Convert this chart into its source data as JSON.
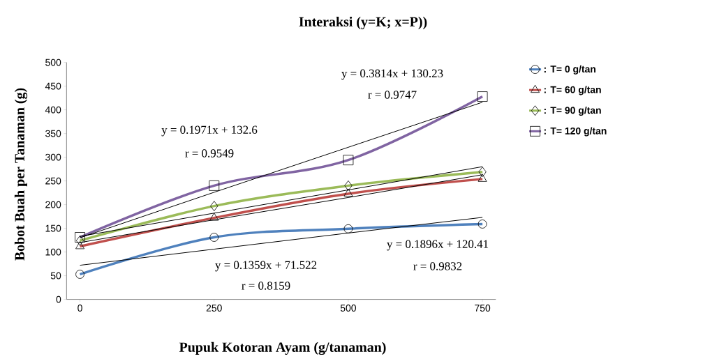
{
  "chart_data": {
    "type": "line",
    "title": "Interaksi (y=K; x=P))",
    "xlabel": "Pupuk Kotoran Ayam (g/tanaman)",
    "ylabel": "Bobot Buah per Tanaman (g)",
    "x": [
      0,
      250,
      500,
      750
    ],
    "xlim": [
      -25,
      775
    ],
    "xticks": [
      0,
      250,
      500,
      750
    ],
    "ylim": [
      0,
      500
    ],
    "yticks": [
      0,
      50,
      100,
      150,
      200,
      250,
      300,
      350,
      400,
      450,
      500
    ],
    "grid": false,
    "legend": "right",
    "line_style": "solid",
    "series": [
      {
        "name": ": T= 0 g/tan",
        "color": "#4f81bd",
        "marker": "circle",
        "values": [
          53,
          131,
          149,
          159
        ]
      },
      {
        "name": ": T= 60 g/tan",
        "color": "#c0504d",
        "marker": "triangle",
        "values": [
          112,
          172,
          223,
          254
        ]
      },
      {
        "name": ": T= 90 g/tan",
        "color": "#9bbb59",
        "marker": "diamond",
        "values": [
          124,
          197,
          240,
          269
        ]
      },
      {
        "name": ": T= 120 g/tan",
        "color": "#8064a2",
        "marker": "square",
        "values": [
          131,
          240,
          294,
          428
        ]
      },
      {
        "type": "line",
        "color": "#000000",
        "values": [
          72,
          106,
          140,
          173
        ]
      },
      {
        "type": "line",
        "color": "#000000",
        "values": [
          120,
          168,
          215,
          263
        ]
      },
      {
        "type": "line",
        "color": "#000000",
        "values": [
          133,
          182,
          231,
          280
        ]
      },
      {
        "type": "line",
        "color": "#000000",
        "values": [
          130,
          226,
          321,
          416
        ]
      }
    ],
    "annotations": [
      "y = 0.1971x + 132.6",
      "r = 0.9549",
      "y = 0.3814x + 130.23",
      "r = 0.9747",
      "y = 0.1896x + 120.41",
      "r = 0.9832",
      "y = 0.1359x + 71.522",
      "r = 0.8159"
    ]
  }
}
